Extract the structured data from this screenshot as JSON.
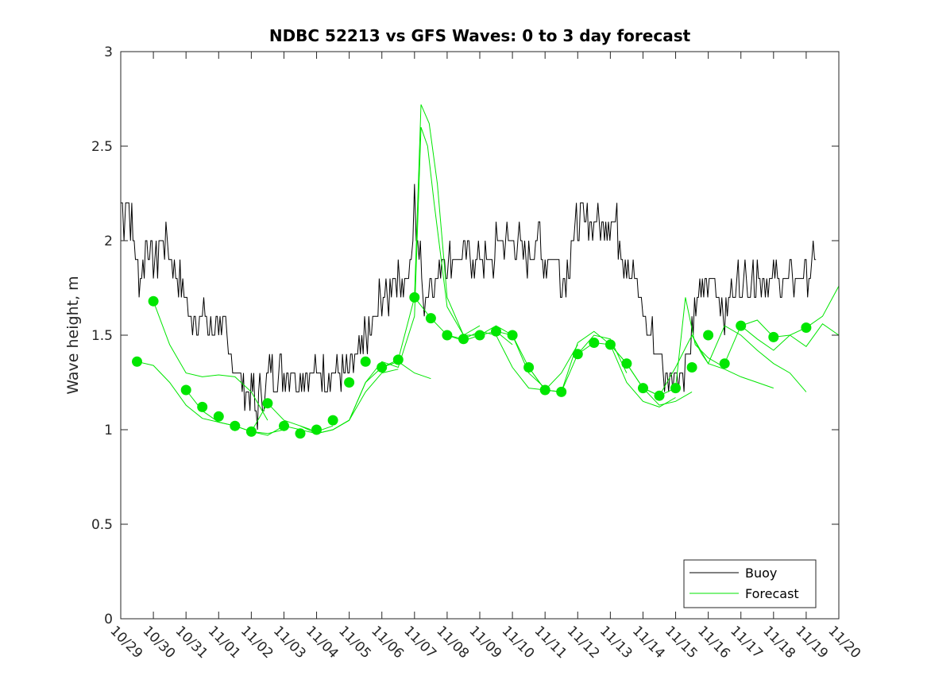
{
  "chart_data": {
    "type": "line",
    "title": "NDBC 52213 vs GFS Waves: 0 to 3 day forecast",
    "xlabel": "",
    "ylabel": "Wave height, m",
    "ylim": [
      0,
      3
    ],
    "xlim": [
      0,
      22
    ],
    "yticks": [
      "0",
      "0.5",
      "1",
      "1.5",
      "2",
      "2.5",
      "3"
    ],
    "categories": [
      "10/29",
      "10/30",
      "10/31",
      "11/01",
      "11/02",
      "11/03",
      "11/04",
      "11/05",
      "11/06",
      "11/07",
      "11/08",
      "11/09",
      "11/10",
      "11/11",
      "11/12",
      "11/13",
      "11/14",
      "11/15",
      "11/16",
      "11/17",
      "11/18",
      "11/19",
      "11/20"
    ],
    "legend": {
      "position": "bottom-right",
      "entries": [
        "Buoy",
        "Forecast"
      ]
    },
    "colors": {
      "buoy": "#000000",
      "forecast": "#00e600",
      "axis": "#262626"
    },
    "buoy": {
      "name": "Buoy",
      "x": [
        0,
        0.1,
        0.2,
        0.3,
        0.45,
        0.6,
        0.8,
        1.0,
        1.3,
        1.6,
        1.9,
        2.2,
        2.5,
        2.8,
        3.0,
        3.3,
        3.6,
        3.8,
        4.0,
        4.15,
        4.3,
        4.6,
        5.0,
        5.5,
        6.0,
        6.5,
        7.0,
        7.3,
        7.6,
        8.0,
        8.5,
        8.9,
        9.0,
        9.1,
        9.3,
        9.6,
        10.0,
        10.5,
        11.0,
        11.5,
        12.0,
        12.5,
        12.8,
        13.0,
        13.3,
        13.6,
        14.0,
        14.5,
        14.9,
        15.2,
        15.5,
        15.7,
        15.9,
        16.0,
        16.2,
        16.5,
        16.7,
        17.0,
        17.3,
        17.5,
        17.7,
        17.9,
        18.2,
        18.5,
        19.0,
        19.5,
        20.0,
        20.5,
        21.0,
        21.3
      ],
      "y": [
        2.2,
        2.1,
        2.2,
        2.1,
        1.9,
        1.8,
        2.0,
        1.9,
        2.0,
        1.9,
        1.7,
        1.6,
        1.6,
        1.5,
        1.6,
        1.4,
        1.3,
        1.2,
        1.2,
        1.1,
        1.2,
        1.3,
        1.25,
        1.3,
        1.3,
        1.3,
        1.3,
        1.4,
        1.5,
        1.7,
        1.8,
        1.85,
        2.2,
        2.0,
        1.7,
        1.8,
        1.9,
        1.85,
        1.9,
        1.95,
        2.0,
        1.9,
        2.0,
        1.85,
        1.9,
        1.8,
        2.1,
        2.1,
        2.1,
        2.05,
        1.9,
        1.8,
        1.7,
        1.6,
        1.5,
        1.4,
        1.3,
        1.3,
        1.35,
        1.5,
        1.7,
        1.75,
        1.8,
        1.6,
        1.8,
        1.85,
        1.8,
        1.75,
        1.75,
        1.9
      ]
    },
    "forecast_runs": [
      {
        "x": [
          0.5,
          1.0,
          1.5,
          2.0,
          2.5,
          3.0,
          3.5
        ],
        "y": [
          1.36,
          1.34,
          1.25,
          1.13,
          1.06,
          1.04,
          1.02
        ]
      },
      {
        "x": [
          1.0,
          1.5,
          2.0,
          2.5,
          3.0,
          3.5,
          4.0,
          4.5
        ],
        "y": [
          1.68,
          1.45,
          1.3,
          1.28,
          1.29,
          1.28,
          1.2,
          1.05
        ]
      },
      {
        "x": [
          2.0,
          2.5,
          3.0,
          3.5,
          4.0,
          4.5,
          5.0
        ],
        "y": [
          1.21,
          1.1,
          1.04,
          1.02,
          0.99,
          0.98,
          1.0
        ]
      },
      {
        "x": [
          3.5,
          4.0,
          4.5,
          5.0,
          5.5,
          6.0,
          6.5
        ],
        "y": [
          1.02,
          0.99,
          1.14,
          1.05,
          1.02,
          0.99,
          1.02
        ]
      },
      {
        "x": [
          4.0,
          4.5,
          5.0,
          5.5,
          6.0,
          6.5,
          7.0,
          7.5,
          8.0,
          8.5
        ],
        "y": [
          0.99,
          0.97,
          1.02,
          1.0,
          0.98,
          1.0,
          1.05,
          1.2,
          1.3,
          1.32
        ]
      },
      {
        "x": [
          5.5,
          6.0,
          6.5,
          7.0,
          7.5,
          8.0,
          8.5,
          9.0,
          9.5
        ],
        "y": [
          1.02,
          0.98,
          1.0,
          1.05,
          1.25,
          1.33,
          1.36,
          1.3,
          1.27
        ]
      },
      {
        "x": [
          6.5,
          7.0,
          7.5,
          8.0,
          8.5,
          9.0,
          9.2,
          9.4,
          9.6,
          10.0,
          10.5,
          11.0
        ],
        "y": [
          1.0,
          1.05,
          1.25,
          1.36,
          1.33,
          1.6,
          2.6,
          2.5,
          2.2,
          1.65,
          1.5,
          1.55
        ]
      },
      {
        "x": [
          8.0,
          8.5,
          9.0,
          9.2,
          9.45,
          9.7,
          10.0,
          10.5,
          11.0,
          11.5,
          12.0
        ],
        "y": [
          1.33,
          1.37,
          1.7,
          2.72,
          2.62,
          2.3,
          1.7,
          1.5,
          1.5,
          1.52,
          1.45
        ]
      },
      {
        "x": [
          9.0,
          9.5,
          10.0,
          10.5,
          11.0,
          11.5,
          12.0,
          12.5,
          13.0
        ],
        "y": [
          1.7,
          1.59,
          1.5,
          1.47,
          1.5,
          1.55,
          1.5,
          1.3,
          1.22
        ]
      },
      {
        "x": [
          10.0,
          10.5,
          11.0,
          11.5,
          12.0,
          12.5,
          13.0,
          13.5,
          14.0
        ],
        "y": [
          1.5,
          1.48,
          1.52,
          1.5,
          1.33,
          1.22,
          1.21,
          1.3,
          1.45
        ]
      },
      {
        "x": [
          11.5,
          12.0,
          12.5,
          13.0,
          13.5,
          14.0,
          14.5,
          15.0,
          15.5
        ],
        "y": [
          1.52,
          1.5,
          1.33,
          1.21,
          1.2,
          1.4,
          1.5,
          1.48,
          1.3
        ]
      },
      {
        "x": [
          12.5,
          13.0,
          13.5,
          14.0,
          14.5,
          15.0,
          15.5,
          16.0,
          16.5,
          17.0
        ],
        "y": [
          1.33,
          1.21,
          1.2,
          1.46,
          1.52,
          1.45,
          1.25,
          1.15,
          1.12,
          1.17
        ]
      },
      {
        "x": [
          14.0,
          14.5,
          15.0,
          15.5,
          16.0,
          16.5,
          17.0,
          17.5
        ],
        "y": [
          1.4,
          1.46,
          1.45,
          1.35,
          1.22,
          1.13,
          1.15,
          1.2
        ]
      },
      {
        "x": [
          15.0,
          15.5,
          16.0,
          16.5,
          17.0,
          17.3,
          17.6,
          18.0,
          18.5
        ],
        "y": [
          1.45,
          1.35,
          1.22,
          1.18,
          1.22,
          1.7,
          1.45,
          1.38,
          1.33
        ]
      },
      {
        "x": [
          16.0,
          16.5,
          17.0,
          17.5,
          17.8,
          18.0,
          18.5,
          19.0,
          19.5,
          20.0
        ],
        "y": [
          1.22,
          1.18,
          1.33,
          1.5,
          1.4,
          1.35,
          1.32,
          1.28,
          1.25,
          1.22
        ]
      },
      {
        "x": [
          17.5,
          18.0,
          18.5,
          19.0,
          19.5,
          20.0,
          20.5,
          21.0
        ],
        "y": [
          1.5,
          1.35,
          1.55,
          1.5,
          1.42,
          1.35,
          1.3,
          1.2
        ]
      },
      {
        "x": [
          18.5,
          19.0,
          19.5,
          20.0,
          20.5,
          21.0,
          21.5,
          22.0
        ],
        "y": [
          1.35,
          1.55,
          1.48,
          1.42,
          1.5,
          1.44,
          1.56,
          1.5
        ]
      },
      {
        "x": [
          19.0,
          19.5,
          20.0,
          20.5,
          21.0,
          21.5,
          22.0
        ],
        "y": [
          1.55,
          1.58,
          1.49,
          1.5,
          1.54,
          1.6,
          1.76
        ]
      }
    ],
    "forecast_markers": {
      "x": [
        0.5,
        1.0,
        2.0,
        2.5,
        3.0,
        3.5,
        4.0,
        4.5,
        5.0,
        5.5,
        6.0,
        6.5,
        7.0,
        7.5,
        8.0,
        8.5,
        9.0,
        9.5,
        10.0,
        10.5,
        11.0,
        11.5,
        12.0,
        12.5,
        13.0,
        13.5,
        14.0,
        14.5,
        15.0,
        15.5,
        16.0,
        16.5,
        17.0,
        17.5,
        18.0,
        18.5,
        19.0,
        20.0,
        21.0
      ],
      "y": [
        1.36,
        1.68,
        1.21,
        1.12,
        1.07,
        1.02,
        0.99,
        1.14,
        1.02,
        0.98,
        1.0,
        1.05,
        1.25,
        1.36,
        1.33,
        1.37,
        1.7,
        1.59,
        1.5,
        1.48,
        1.5,
        1.52,
        1.5,
        1.33,
        1.21,
        1.2,
        1.4,
        1.46,
        1.45,
        1.35,
        1.22,
        1.18,
        1.22,
        1.33,
        1.5,
        1.35,
        1.55,
        1.49,
        1.54
      ]
    }
  }
}
